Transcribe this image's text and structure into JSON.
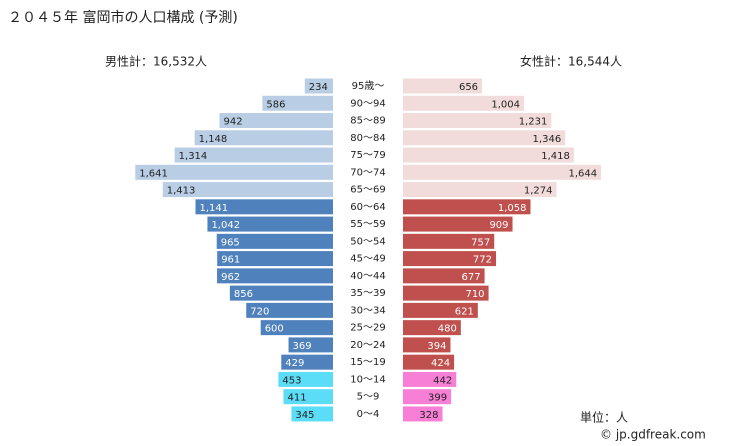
{
  "chart_data": {
    "type": "pyramid",
    "title": "２０４５年 富岡市の人口構成 (予測)",
    "male_total": "男性計：16,532人",
    "female_total": "女性計：16,544人",
    "unit": "単位：人",
    "credit": "© jp.gdfreak.com",
    "categories": [
      "95歳～",
      "90～94",
      "85～89",
      "80～84",
      "75～79",
      "70～74",
      "65～69",
      "60～64",
      "55～59",
      "50～54",
      "45～49",
      "40～44",
      "35～39",
      "30～34",
      "25～29",
      "20～24",
      "15～19",
      "10～14",
      "5～9",
      "0～4"
    ],
    "series": [
      {
        "name": "男性",
        "values": [
          234,
          586,
          942,
          1148,
          1314,
          1641,
          1413,
          1141,
          1042,
          965,
          961,
          962,
          856,
          720,
          600,
          369,
          429,
          453,
          411,
          345
        ],
        "value_labels": [
          "234",
          "586",
          "942",
          "1,148",
          "1,314",
          "1,641",
          "1,413",
          "1,141",
          "1,042",
          "965",
          "961",
          "962",
          "856",
          "720",
          "600",
          "369",
          "429",
          "453",
          "411",
          "345"
        ],
        "colors": [
          "#b9cde5",
          "#b9cde5",
          "#b9cde5",
          "#b9cde5",
          "#b9cde5",
          "#b9cde5",
          "#b9cde5",
          "#4f81bd",
          "#4f81bd",
          "#4f81bd",
          "#4f81bd",
          "#4f81bd",
          "#4f81bd",
          "#4f81bd",
          "#4f81bd",
          "#4f81bd",
          "#4f81bd",
          "#5bdcf7",
          "#5bdcf7",
          "#5bdcf7"
        ]
      },
      {
        "name": "女性",
        "values": [
          656,
          1004,
          1231,
          1346,
          1418,
          1644,
          1274,
          1058,
          909,
          757,
          772,
          677,
          710,
          621,
          480,
          394,
          424,
          442,
          399,
          328
        ],
        "value_labels": [
          "656",
          "1,004",
          "1,231",
          "1,346",
          "1,418",
          "1,644",
          "1,274",
          "1,058",
          "909",
          "757",
          "772",
          "677",
          "710",
          "621",
          "480",
          "394",
          "424",
          "442",
          "399",
          "328"
        ],
        "colors": [
          "#f2dcdb",
          "#f2dcdb",
          "#f2dcdb",
          "#f2dcdb",
          "#f2dcdb",
          "#f2dcdb",
          "#f2dcdb",
          "#c0504d",
          "#c0504d",
          "#c0504d",
          "#c0504d",
          "#c0504d",
          "#c0504d",
          "#c0504d",
          "#c0504d",
          "#c0504d",
          "#c0504d",
          "#f77fd6",
          "#f77fd6",
          "#f77fd6"
        ]
      }
    ]
  }
}
